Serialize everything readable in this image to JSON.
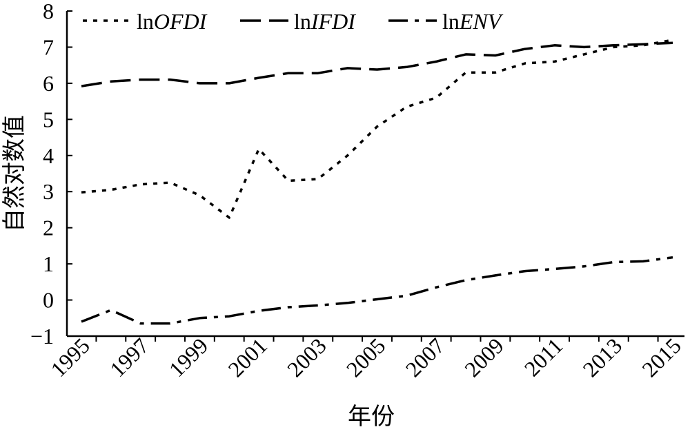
{
  "chart_data": {
    "type": "line",
    "title": "",
    "xlabel": "年份",
    "ylabel": "自然对数值",
    "xlim": [
      1995,
      2015
    ],
    "ylim": [
      -1,
      8
    ],
    "x_ticks": [
      "1995",
      "1997",
      "1999",
      "2001",
      "2003",
      "2005",
      "2007",
      "2009",
      "2011",
      "2013",
      "2015"
    ],
    "y_ticks": [
      "−1",
      "0",
      "1",
      "2",
      "3",
      "4",
      "5",
      "6",
      "7",
      "8"
    ],
    "grid": false,
    "legend_position": "top-left",
    "x": [
      1995,
      1996,
      1997,
      1998,
      1999,
      2000,
      2001,
      2002,
      2003,
      2004,
      2005,
      2006,
      2007,
      2008,
      2009,
      2010,
      2011,
      2012,
      2013,
      2014,
      2015
    ],
    "series": [
      {
        "name": "lnOFDI",
        "legend_prefix": "ln",
        "legend_italic": "OFDI",
        "dash": "dotted",
        "values": [
          2.98,
          3.05,
          3.2,
          3.25,
          2.9,
          2.28,
          4.18,
          3.3,
          3.35,
          4.0,
          4.8,
          5.35,
          5.6,
          6.3,
          6.3,
          6.55,
          6.6,
          6.8,
          7.0,
          7.05,
          7.2
        ]
      },
      {
        "name": "lnIFDI",
        "legend_prefix": "ln",
        "legend_italic": "IFDI",
        "dash": "dashed",
        "values": [
          5.92,
          6.05,
          6.1,
          6.1,
          6.0,
          6.0,
          6.15,
          6.28,
          6.28,
          6.42,
          6.38,
          6.45,
          6.6,
          6.8,
          6.77,
          6.95,
          7.05,
          7.0,
          7.05,
          7.08,
          7.12
        ]
      },
      {
        "name": "lnENV",
        "legend_prefix": "ln",
        "legend_italic": "ENV",
        "dash": "dashdot",
        "values": [
          -0.6,
          -0.28,
          -0.65,
          -0.65,
          -0.5,
          -0.45,
          -0.3,
          -0.2,
          -0.15,
          -0.08,
          0.02,
          0.12,
          0.35,
          0.55,
          0.68,
          0.8,
          0.86,
          0.93,
          1.05,
          1.07,
          1.18
        ]
      }
    ]
  }
}
